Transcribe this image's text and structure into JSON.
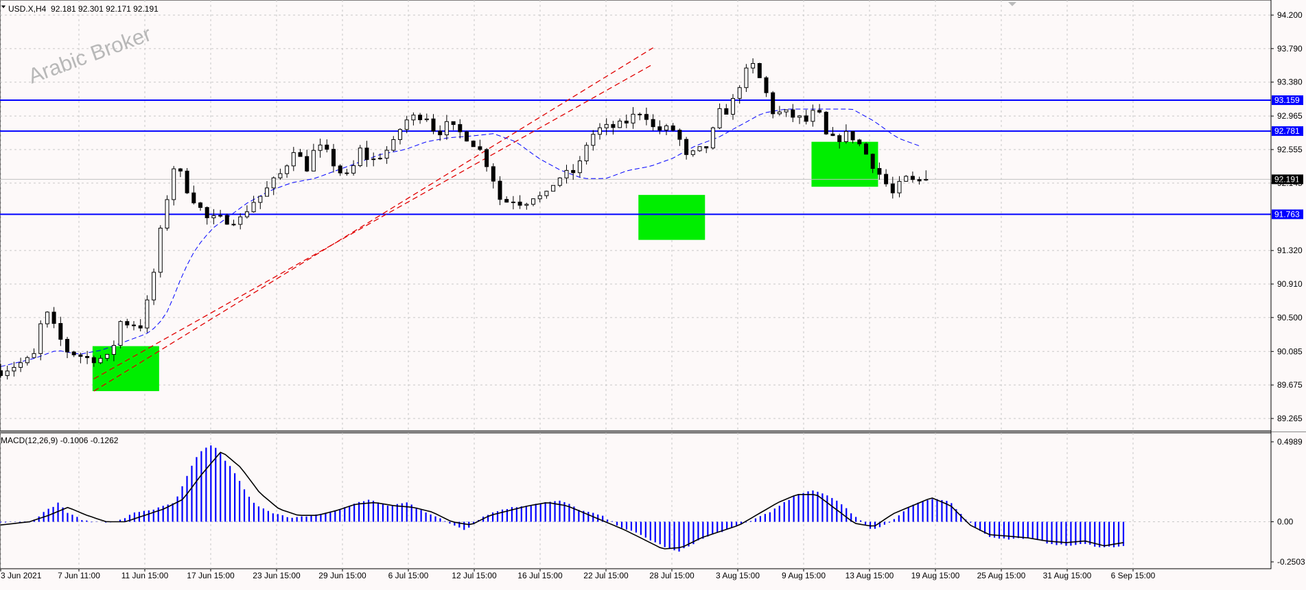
{
  "symbol_header": "USD.X,H4  92.181 92.301 92.171 92.191",
  "watermark": "Arabic Broker",
  "indicator_header": "MACD(12,26,9) -0.1006 -0.1262",
  "colors": {
    "background": "#fdf9f9",
    "grid": "#c8c8c8",
    "candle": "#000000",
    "level_line": "#0000ff",
    "trend_line": "#e00000",
    "ma_line": "#0000ff",
    "zone": "#00ee00",
    "macd_hist": "#0000ff",
    "macd_signal": "#000000"
  },
  "chart_data": [
    {
      "type": "candlestick",
      "symbol": "USD.X",
      "timeframe": "H4",
      "ohlc_last": {
        "open": 92.181,
        "high": 92.301,
        "low": 92.171,
        "close": 92.191
      },
      "y_ticks": [
        "94.200",
        "93.790",
        "93.380",
        "92.965",
        "92.555",
        "92.145",
        "91.320",
        "90.910",
        "90.500",
        "90.085",
        "89.675",
        "89.265"
      ],
      "ylim": [
        89.15,
        94.3
      ],
      "x_ticks": [
        "3 Jun 2021",
        "7 Jun 11:00",
        "11 Jun 15:00",
        "17 Jun 15:00",
        "23 Jun 15:00",
        "29 Jun 15:00",
        "6 Jul 15:00",
        "12 Jul 15:00",
        "16 Jul 15:00",
        "22 Jul 15:00",
        "28 Jul 15:00",
        "3 Aug 15:00",
        "9 Aug 15:00",
        "13 Aug 15:00",
        "19 Aug 15:00",
        "25 Aug 15:00",
        "31 Aug 15:00",
        "6 Sep 15:00"
      ],
      "horizontal_levels": [
        {
          "label": "93.159",
          "value": 93.159
        },
        {
          "label": "92.781",
          "value": 92.781
        },
        {
          "label": "91.763",
          "value": 91.763
        }
      ],
      "current_price_label": "92.191",
      "price_path": [
        [
          0,
          89.85
        ],
        [
          3,
          90.0
        ],
        [
          4,
          90.6
        ],
        [
          6,
          90.1
        ],
        [
          8,
          90.0
        ],
        [
          10,
          90.0
        ],
        [
          11,
          90.45
        ],
        [
          13,
          90.4
        ],
        [
          14,
          91.0
        ],
        [
          15,
          91.8
        ],
        [
          16,
          92.4
        ],
        [
          17,
          92.1
        ],
        [
          18,
          91.9
        ],
        [
          19,
          91.7
        ],
        [
          21,
          91.7
        ],
        [
          22,
          91.7
        ],
        [
          23,
          91.9
        ],
        [
          24,
          92.0
        ],
        [
          26,
          92.3
        ],
        [
          27,
          92.6
        ],
        [
          28,
          92.3
        ],
        [
          29,
          92.6
        ],
        [
          30,
          92.5
        ],
        [
          31,
          92.3
        ],
        [
          32,
          92.2
        ],
        [
          33,
          92.55
        ],
        [
          34,
          92.4
        ],
        [
          36,
          92.6
        ],
        [
          37,
          92.9
        ],
        [
          39,
          93.0
        ],
        [
          40,
          92.75
        ],
        [
          41,
          92.85
        ],
        [
          43,
          92.7
        ],
        [
          44,
          92.55
        ],
        [
          45,
          92.3
        ],
        [
          46,
          91.9
        ],
        [
          47,
          91.95
        ],
        [
          48,
          91.9
        ],
        [
          49,
          92.0
        ],
        [
          50,
          91.95
        ],
        [
          51,
          92.2
        ],
        [
          53,
          92.3
        ],
        [
          54,
          92.7
        ],
        [
          55,
          92.8
        ],
        [
          57,
          92.85
        ],
        [
          59,
          93.05
        ],
        [
          60,
          92.8
        ],
        [
          62,
          92.8
        ],
        [
          63,
          92.45
        ],
        [
          65,
          92.6
        ],
        [
          66,
          93.0
        ],
        [
          67,
          93.05
        ],
        [
          68,
          93.4
        ],
        [
          69,
          93.6
        ],
        [
          70,
          93.35
        ],
        [
          71,
          93.0
        ],
        [
          72,
          93.0
        ],
        [
          74,
          92.9
        ],
        [
          75,
          93.05
        ],
        [
          76,
          92.65
        ],
        [
          78,
          92.75
        ],
        [
          79,
          92.6
        ],
        [
          80,
          92.4
        ],
        [
          81,
          92.2
        ],
        [
          82,
          92.0
        ],
        [
          83,
          92.2
        ],
        [
          84,
          92.15
        ],
        [
          85,
          92.19
        ]
      ],
      "moving_average_path": [
        [
          0,
          89.9
        ],
        [
          3,
          90.0
        ],
        [
          5,
          90.1
        ],
        [
          7,
          90.05
        ],
        [
          9,
          90.1
        ],
        [
          11,
          90.2
        ],
        [
          13,
          90.3
        ],
        [
          14,
          90.4
        ],
        [
          15,
          90.6
        ],
        [
          16,
          90.95
        ],
        [
          17,
          91.25
        ],
        [
          18,
          91.45
        ],
        [
          19,
          91.6
        ],
        [
          20,
          91.7
        ],
        [
          22,
          91.9
        ],
        [
          24,
          92.05
        ],
        [
          26,
          92.15
        ],
        [
          28,
          92.2
        ],
        [
          30,
          92.3
        ],
        [
          32,
          92.4
        ],
        [
          34,
          92.5
        ],
        [
          36,
          92.55
        ],
        [
          38,
          92.65
        ],
        [
          40,
          92.7
        ],
        [
          42,
          92.72
        ],
        [
          44,
          92.75
        ],
        [
          46,
          92.65
        ],
        [
          48,
          92.45
        ],
        [
          50,
          92.3
        ],
        [
          52,
          92.2
        ],
        [
          54,
          92.2
        ],
        [
          56,
          92.3
        ],
        [
          58,
          92.35
        ],
        [
          60,
          92.45
        ],
        [
          62,
          92.6
        ],
        [
          64,
          92.7
        ],
        [
          66,
          92.85
        ],
        [
          68,
          93.0
        ],
        [
          70,
          93.05
        ],
        [
          72,
          93.05
        ],
        [
          74,
          93.05
        ],
        [
          76,
          93.05
        ],
        [
          78,
          92.9
        ],
        [
          80,
          92.7
        ],
        [
          82,
          92.6
        ]
      ],
      "trend_lines": [
        {
          "from": [
            14,
            89.6
          ],
          "to": [
            98,
            93.8
          ]
        },
        {
          "from": [
            14,
            89.75
          ],
          "to": [
            98,
            93.6
          ]
        }
      ],
      "zones": [
        {
          "x_range": [
            13.8,
            23.8
          ],
          "y_range": [
            89.6,
            90.15
          ]
        },
        {
          "x_range": [
            95.8,
            105.8
          ],
          "y_range": [
            91.45,
            92.0
          ]
        },
        {
          "x_range": [
            121.8,
            131.8
          ],
          "y_range": [
            92.1,
            92.65
          ]
        }
      ]
    },
    {
      "type": "histogram",
      "name": "MACD(12,26,9)",
      "main": -0.1006,
      "signal": -0.1262,
      "y_ticks": [
        "0.4989",
        "0.00",
        "-0.2503"
      ],
      "ylim": [
        -0.2503,
        0.4989
      ],
      "hist_path": [
        [
          0,
          0.0
        ],
        [
          3,
          0.0
        ],
        [
          5,
          0.08
        ],
        [
          6,
          0.12
        ],
        [
          7,
          0.05
        ],
        [
          9,
          0.0
        ],
        [
          12,
          0.0
        ],
        [
          14,
          0.06
        ],
        [
          16,
          0.08
        ],
        [
          17,
          0.1
        ],
        [
          18,
          0.12
        ],
        [
          19,
          0.25
        ],
        [
          20,
          0.38
        ],
        [
          21,
          0.46
        ],
        [
          22,
          0.48
        ],
        [
          24,
          0.32
        ],
        [
          26,
          0.12
        ],
        [
          28,
          0.06
        ],
        [
          30,
          0.02
        ],
        [
          32,
          0.04
        ],
        [
          34,
          0.06
        ],
        [
          36,
          0.1
        ],
        [
          38,
          0.14
        ],
        [
          40,
          0.1
        ],
        [
          42,
          0.12
        ],
        [
          44,
          0.06
        ],
        [
          46,
          0.0
        ],
        [
          48,
          -0.05
        ],
        [
          50,
          0.04
        ],
        [
          52,
          0.08
        ],
        [
          54,
          0.1
        ],
        [
          56,
          0.12
        ],
        [
          58,
          0.13
        ],
        [
          60,
          0.07
        ],
        [
          62,
          0.04
        ],
        [
          64,
          -0.03
        ],
        [
          66,
          -0.08
        ],
        [
          68,
          -0.14
        ],
        [
          70,
          -0.19
        ],
        [
          72,
          -0.12
        ],
        [
          74,
          -0.07
        ],
        [
          76,
          -0.03
        ],
        [
          78,
          0.02
        ],
        [
          80,
          0.08
        ],
        [
          82,
          0.16
        ],
        [
          84,
          0.2
        ],
        [
          86,
          0.15
        ],
        [
          88,
          0.05
        ],
        [
          90,
          -0.05
        ],
        [
          92,
          0.0
        ],
        [
          94,
          0.1
        ],
        [
          96,
          0.14
        ],
        [
          98,
          0.13
        ],
        [
          100,
          0.0
        ],
        [
          102,
          -0.09
        ],
        [
          104,
          -0.11
        ],
        [
          106,
          -0.1
        ],
        [
          108,
          -0.13
        ],
        [
          110,
          -0.15
        ],
        [
          112,
          -0.14
        ],
        [
          114,
          -0.16
        ],
        [
          116,
          -0.15
        ]
      ],
      "signal_path": [
        [
          0,
          -0.02
        ],
        [
          3,
          0.0
        ],
        [
          5,
          0.04
        ],
        [
          7,
          0.09
        ],
        [
          9,
          0.04
        ],
        [
          11,
          0.0
        ],
        [
          13,
          0.0
        ],
        [
          15,
          0.04
        ],
        [
          17,
          0.08
        ],
        [
          19,
          0.14
        ],
        [
          21,
          0.3
        ],
        [
          23,
          0.44
        ],
        [
          25,
          0.34
        ],
        [
          27,
          0.18
        ],
        [
          29,
          0.08
        ],
        [
          31,
          0.04
        ],
        [
          33,
          0.04
        ],
        [
          35,
          0.07
        ],
        [
          37,
          0.11
        ],
        [
          39,
          0.12
        ],
        [
          41,
          0.1
        ],
        [
          43,
          0.09
        ],
        [
          45,
          0.06
        ],
        [
          47,
          0.0
        ],
        [
          49,
          -0.02
        ],
        [
          51,
          0.04
        ],
        [
          53,
          0.07
        ],
        [
          55,
          0.1
        ],
        [
          57,
          0.12
        ],
        [
          59,
          0.1
        ],
        [
          61,
          0.05
        ],
        [
          63,
          0.0
        ],
        [
          65,
          -0.05
        ],
        [
          67,
          -0.11
        ],
        [
          69,
          -0.17
        ],
        [
          71,
          -0.16
        ],
        [
          73,
          -0.1
        ],
        [
          75,
          -0.06
        ],
        [
          77,
          -0.02
        ],
        [
          79,
          0.05
        ],
        [
          81,
          0.12
        ],
        [
          83,
          0.17
        ],
        [
          85,
          0.17
        ],
        [
          87,
          0.08
        ],
        [
          89,
          -0.01
        ],
        [
          91,
          -0.03
        ],
        [
          93,
          0.05
        ],
        [
          95,
          0.1
        ],
        [
          97,
          0.15
        ],
        [
          99,
          0.1
        ],
        [
          101,
          -0.02
        ],
        [
          103,
          -0.08
        ],
        [
          105,
          -0.09
        ],
        [
          107,
          -0.1
        ],
        [
          109,
          -0.12
        ],
        [
          111,
          -0.13
        ],
        [
          113,
          -0.12
        ],
        [
          115,
          -0.15
        ],
        [
          117,
          -0.13
        ]
      ]
    }
  ]
}
